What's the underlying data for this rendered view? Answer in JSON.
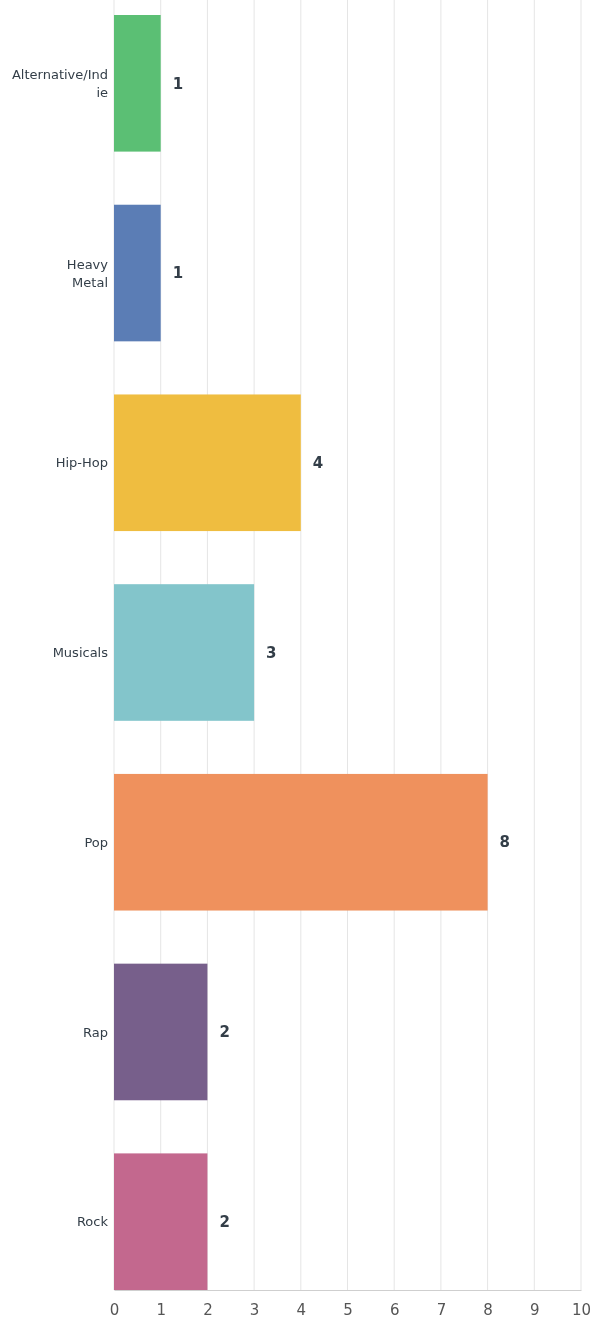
{
  "chart_data": {
    "type": "bar",
    "orientation": "horizontal",
    "categories": [
      "Alternative/Indie",
      "Heavy Metal",
      "Hip-Hop",
      "Musicals",
      "Pop",
      "Rap",
      "Rock"
    ],
    "values": [
      1,
      1,
      4,
      3,
      8,
      2,
      2
    ],
    "colors": [
      "#5bbf74",
      "#5b7db5",
      "#efbd40",
      "#83c5cb",
      "#ef915d",
      "#775f8b",
      "#c3688e"
    ],
    "xlim": [
      0,
      10
    ],
    "xticks": [
      0,
      1,
      2,
      3,
      4,
      5,
      6,
      7,
      8,
      9,
      10
    ],
    "grid": "x",
    "data_labels": true
  }
}
